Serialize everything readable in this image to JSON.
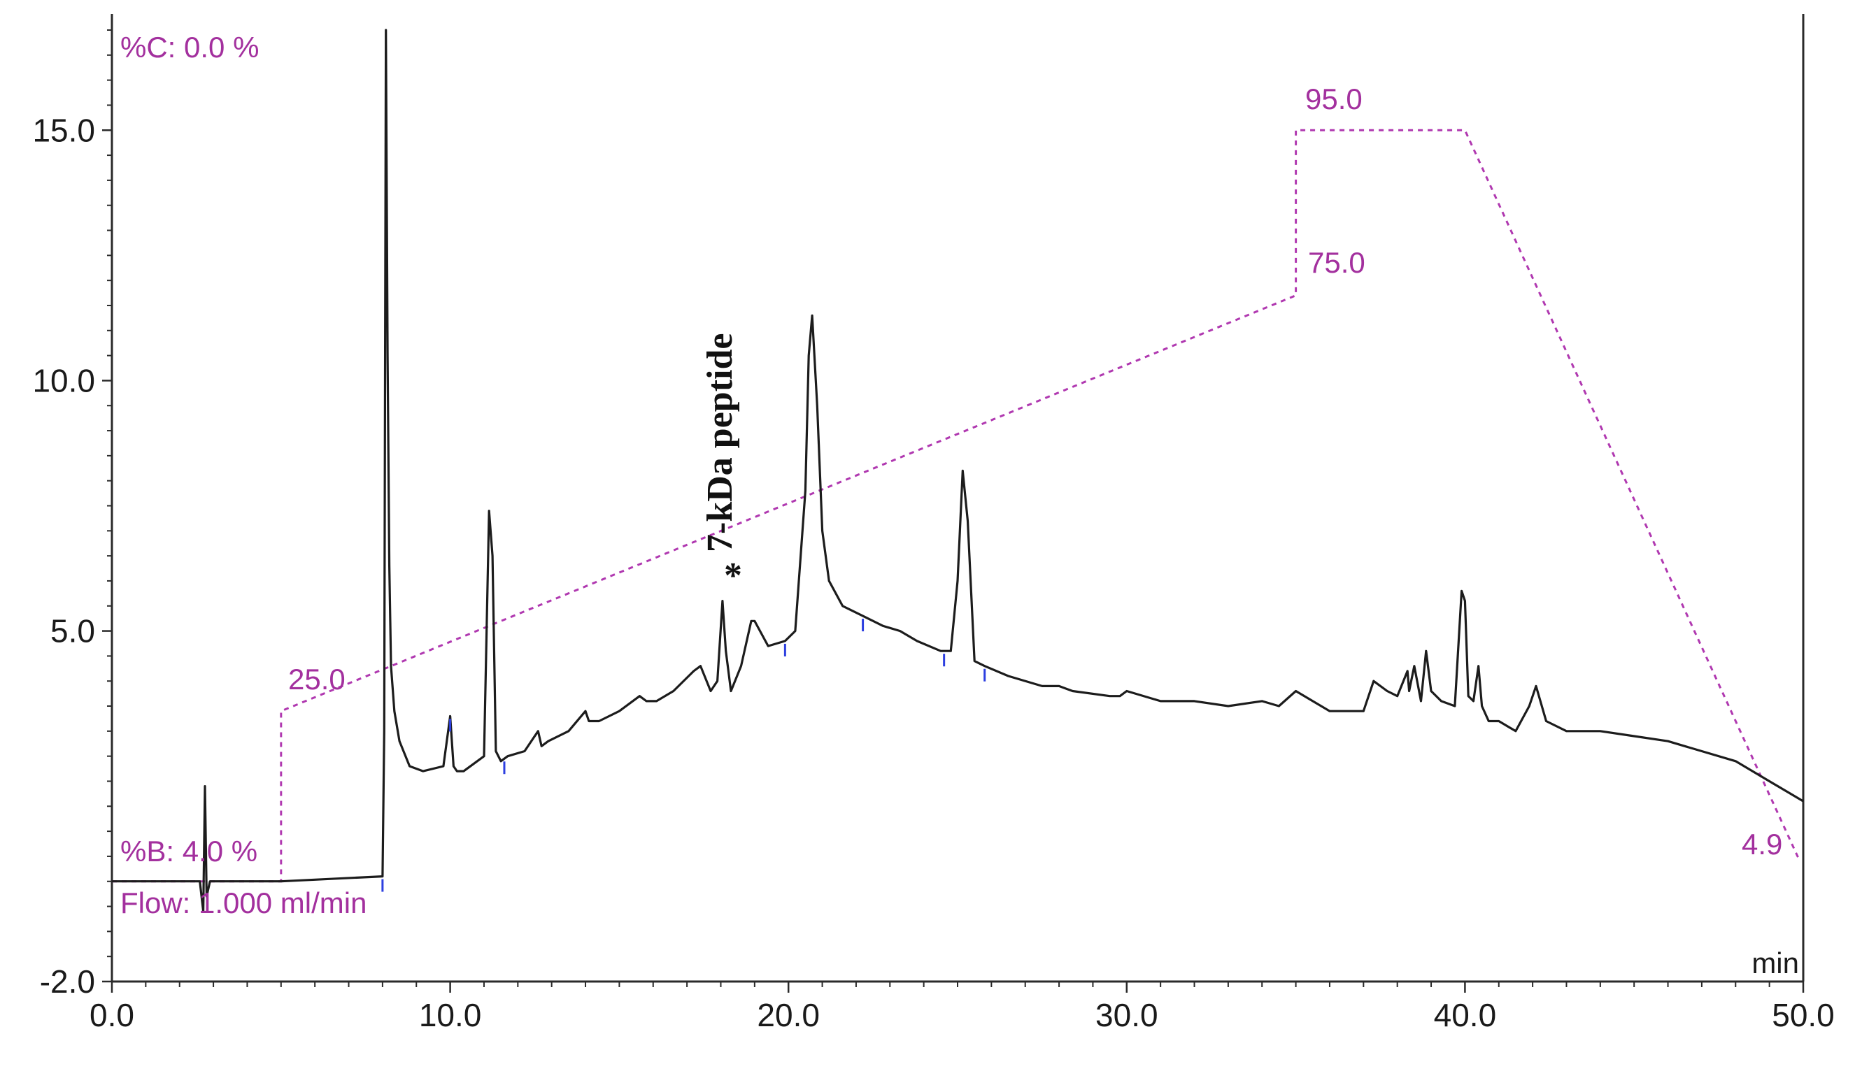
{
  "chart_data": {
    "type": "line",
    "title": "",
    "xlabel": "",
    "ylabel": "",
    "x_unit_label": "min",
    "xlim": [
      0,
      50
    ],
    "ylim": [
      -2.0,
      17.0
    ],
    "x_ticks": [
      0,
      10,
      20,
      30,
      40,
      50
    ],
    "x_tick_labels": [
      "0.0",
      "10.0",
      "20.0",
      "30.0",
      "40.0",
      "50.0"
    ],
    "y_ticks": [
      -2,
      5,
      10,
      15
    ],
    "y_tick_labels": [
      "-2.0",
      "5.0",
      "10.0",
      "15.0"
    ],
    "grid": false,
    "series": [
      {
        "role": "chromatogram",
        "color": "#1c1c1c",
        "x": [
          0,
          2.6,
          2.7,
          2.75,
          2.8,
          2.9,
          5.0,
          8.0,
          8.05,
          8.1,
          8.15,
          8.2,
          8.25,
          8.35,
          8.5,
          8.8,
          9.2,
          9.8,
          10.0,
          10.1,
          10.2,
          10.4,
          11.0,
          11.15,
          11.25,
          11.35,
          11.5,
          11.7,
          12.2,
          12.6,
          12.7,
          12.9,
          13.5,
          14.0,
          14.1,
          14.4,
          15.0,
          15.6,
          15.8,
          16.1,
          16.6,
          17.2,
          17.4,
          17.7,
          17.9,
          18.05,
          18.15,
          18.3,
          18.6,
          18.9,
          19.0,
          19.4,
          19.9,
          20.2,
          20.5,
          20.6,
          20.7,
          20.85,
          21.0,
          21.2,
          21.6,
          22.2,
          22.8,
          23.3,
          23.8,
          24.5,
          24.8,
          25.0,
          25.15,
          25.3,
          25.5,
          25.8,
          26.5,
          27.5,
          28.0,
          28.4,
          29.5,
          29.8,
          30.0,
          31.0,
          32.0,
          33.0,
          34.0,
          34.5,
          35.0,
          35.5,
          36.0,
          37.0,
          37.3,
          37.7,
          38.0,
          38.3,
          38.35,
          38.5,
          38.7,
          38.85,
          39.0,
          39.3,
          39.7,
          39.9,
          40.0,
          40.1,
          40.25,
          40.4,
          40.5,
          40.7,
          41.0,
          41.5,
          41.9,
          42.1,
          42.4,
          43.0,
          44.0,
          45.0,
          46.0,
          47.0,
          48.0,
          49.0,
          50.0
        ],
        "y": [
          0,
          0,
          -0.6,
          1.9,
          -0.3,
          0,
          0,
          0.1,
          3.0,
          17.0,
          10.5,
          6.3,
          4.3,
          3.4,
          2.8,
          2.3,
          2.2,
          2.3,
          3.3,
          2.3,
          2.2,
          2.2,
          2.5,
          7.4,
          6.5,
          2.6,
          2.4,
          2.5,
          2.6,
          3.0,
          2.7,
          2.8,
          3.0,
          3.4,
          3.2,
          3.2,
          3.4,
          3.7,
          3.6,
          3.6,
          3.8,
          4.2,
          4.3,
          3.8,
          4.0,
          5.6,
          4.6,
          3.8,
          4.3,
          5.2,
          5.2,
          4.7,
          4.8,
          5.0,
          7.8,
          10.5,
          11.3,
          9.5,
          7.0,
          6.0,
          5.5,
          5.3,
          5.1,
          5.0,
          4.8,
          4.6,
          4.6,
          6.0,
          8.2,
          7.2,
          4.4,
          4.3,
          4.1,
          3.9,
          3.9,
          3.8,
          3.7,
          3.7,
          3.8,
          3.6,
          3.6,
          3.5,
          3.6,
          3.5,
          3.8,
          3.6,
          3.4,
          3.4,
          4.0,
          3.8,
          3.7,
          4.2,
          3.8,
          4.3,
          3.6,
          4.6,
          3.8,
          3.6,
          3.5,
          5.8,
          5.6,
          3.7,
          3.6,
          4.3,
          3.5,
          3.2,
          3.2,
          3.0,
          3.5,
          3.9,
          3.2,
          3.0,
          3.0,
          2.9,
          2.8,
          2.6,
          2.4,
          2.0,
          1.6
        ]
      },
      {
        "role": "gradient_program",
        "color": "#b038b0",
        "x": [
          0,
          5.0,
          5.0,
          35.0,
          35.0,
          40.0,
          49.9
        ],
        "y": [
          0,
          0,
          3.4,
          11.7,
          15.0,
          15.0,
          0.4
        ]
      }
    ],
    "baseline_markers_x": [
      8.0,
      10.0,
      11.6,
      19.9,
      22.2,
      24.6,
      25.8
    ],
    "annotations": {
      "peptide_label": "7-kDa peptide",
      "peptide_marker": "*",
      "peptide_x": 18.1,
      "percent_c": "%C: 0.0 %",
      "percent_b": "%B: 4.0 %",
      "flow": "Flow: 1.000 ml/min",
      "gradient_value_1": "25.0",
      "gradient_value_2": "75.0",
      "gradient_value_3": "95.0",
      "gradient_value_4": "4.9"
    }
  }
}
